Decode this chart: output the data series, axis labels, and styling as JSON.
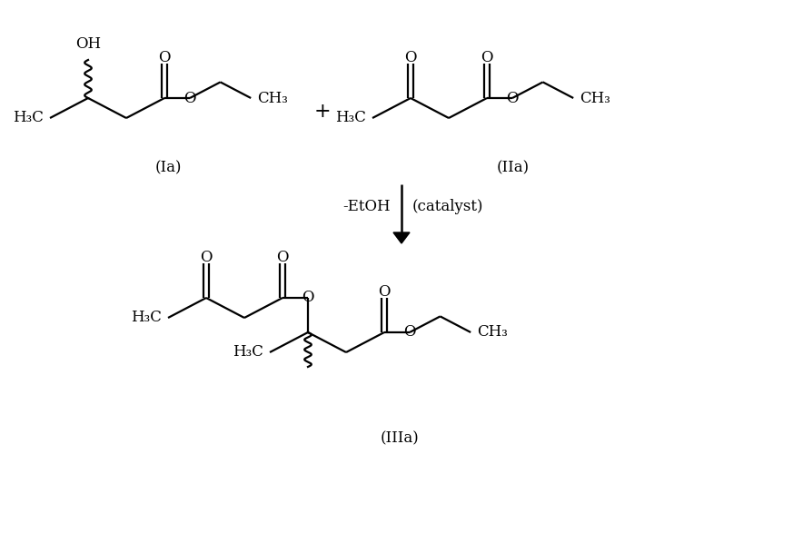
{
  "bg_color": "#ffffff",
  "lw": 1.6,
  "fs": 12,
  "label_Ia": "(Ia)",
  "label_IIa": "(IIa)",
  "label_IIIa": "(IIIa)",
  "arrow_left": "-EtOH",
  "arrow_right": "(catalyst)"
}
